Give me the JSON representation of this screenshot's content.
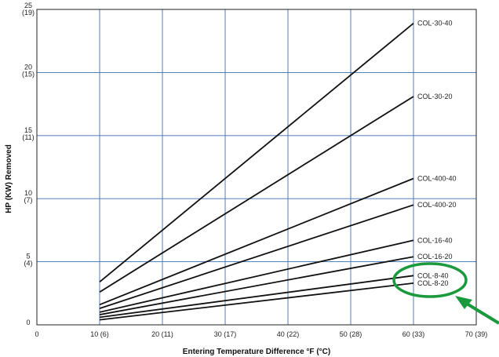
{
  "chart_data": {
    "type": "line",
    "title": "",
    "xlabel": "Entering Temperature Difference °F (°C)",
    "ylabel": "HP (KW) Removed",
    "xlim": [
      0,
      70
    ],
    "ylim": [
      0,
      25
    ],
    "grid": true,
    "x_ticks": [
      {
        "value": 0,
        "label": "0"
      },
      {
        "value": 10,
        "label": "10 (6)"
      },
      {
        "value": 20,
        "label": "20 (11)"
      },
      {
        "value": 30,
        "label": "30 (17)"
      },
      {
        "value": 40,
        "label": "40 (22)"
      },
      {
        "value": 50,
        "label": "50 (28)"
      },
      {
        "value": 60,
        "label": "60 (33)"
      },
      {
        "value": 70,
        "label": "70 (39)"
      }
    ],
    "y_ticks": [
      {
        "value": 0,
        "label": "0",
        "sub": ""
      },
      {
        "value": 5,
        "label": "5",
        "sub": "(4)"
      },
      {
        "value": 10,
        "label": "10",
        "sub": "(7)"
      },
      {
        "value": 15,
        "label": "15",
        "sub": "(11)"
      },
      {
        "value": 20,
        "label": "20",
        "sub": "(15)"
      },
      {
        "value": 25,
        "label": "25",
        "sub": "(19)"
      }
    ],
    "series": [
      {
        "name": "COL-30-40",
        "x": [
          10,
          60
        ],
        "y": [
          3.4,
          23.9
        ]
      },
      {
        "name": "COL-30-20",
        "x": [
          10,
          60
        ],
        "y": [
          2.6,
          18.1
        ]
      },
      {
        "name": "COL-400-40",
        "x": [
          10,
          60
        ],
        "y": [
          1.6,
          11.6
        ]
      },
      {
        "name": "COL-400-20",
        "x": [
          10,
          60
        ],
        "y": [
          1.3,
          9.5
        ]
      },
      {
        "name": "COL-16-40",
        "x": [
          10,
          60
        ],
        "y": [
          1.0,
          6.7
        ]
      },
      {
        "name": "COL-16-20",
        "x": [
          10,
          60
        ],
        "y": [
          0.8,
          5.4
        ]
      },
      {
        "name": "COL-8-40",
        "x": [
          10,
          60
        ],
        "y": [
          0.6,
          3.9
        ]
      },
      {
        "name": "COL-8-20",
        "x": [
          10,
          60
        ],
        "y": [
          0.4,
          3.3
        ]
      }
    ],
    "annotation": {
      "type": "highlight-ellipse",
      "target": [
        "COL-8-40",
        "COL-8-20"
      ],
      "color": "#1a9a3c"
    }
  },
  "colors": {
    "grid": "#3f6fb5",
    "line": "#111111",
    "highlight": "#1a9a3c"
  }
}
